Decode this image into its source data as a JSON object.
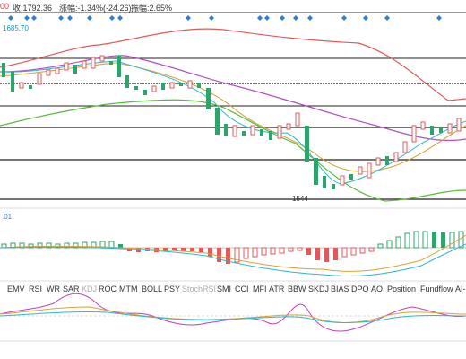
{
  "header": {
    "prefix": "00",
    "close": "收:1792.36",
    "change": "涨幅:-1.34%(-24.26)",
    "amplitude": "振幅:2.65%"
  },
  "price_axis_label": "1685.70",
  "low_marker_text": "1544",
  "macd_axis_label": ".01",
  "indicator_tabs": [
    "EMV",
    "RSI",
    "WR",
    "SAR",
    "KDJ",
    "ROC",
    "MTM",
    "BOLL",
    "PSY",
    "StochRSI",
    "SMI",
    "CCI",
    "MFI",
    "ATR",
    "BBW",
    "SKDJ",
    "BIAS",
    "DPO",
    "AO",
    "Position",
    "Fundflow",
    "AI-"
  ],
  "active_tab": "KDJ",
  "colors": {
    "up": "#2fa36b",
    "down": "#e05a5a",
    "marker": "#2f7fd6",
    "ma_red": "#e05a5a",
    "ma_green": "#5aba3a",
    "ma_purple": "#b050c0",
    "ma_orange": "#d9a23a",
    "ma_cyan": "#2bb7d0"
  }
}
